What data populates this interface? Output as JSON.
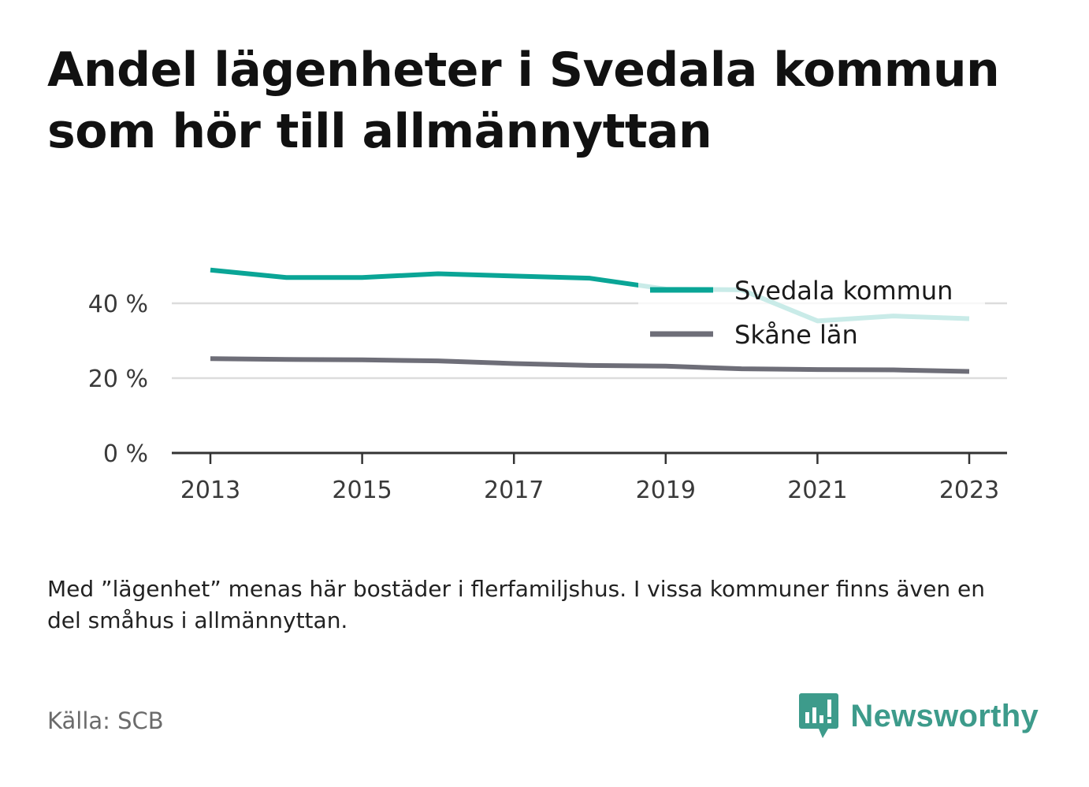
{
  "title": "Andel lägenheter i Svedala kommun som hör till allmännyttan",
  "note": "Med ”lägenhet” menas här bostäder i flerfamiljshus. I vissa kommuner finns även en del småhus i allmännyttan.",
  "source": "Källa: SCB",
  "brand": {
    "name": "Newsworthy",
    "color": "#3d9b8b"
  },
  "chart_data": {
    "type": "line",
    "x": [
      2013,
      2014,
      2015,
      2016,
      2017,
      2018,
      2019,
      2020,
      2021,
      2022,
      2023
    ],
    "x_ticks": [
      "2013",
      "2015",
      "2017",
      "2019",
      "2021",
      "2023"
    ],
    "y_ticks": [
      "0 %",
      "20 %",
      "40 %"
    ],
    "ylim": [
      0,
      50
    ],
    "grid": true,
    "legend_position": "top-right",
    "series": [
      {
        "name": "Svedala kommun",
        "color": "#0aa596",
        "values": [
          48.9,
          46.9,
          46.9,
          47.9,
          47.3,
          46.7,
          43.8,
          43.6,
          35.3,
          36.6,
          35.9
        ]
      },
      {
        "name": "Skåne län",
        "color": "#6e6e78",
        "values": [
          25.2,
          25.0,
          24.9,
          24.6,
          23.9,
          23.4,
          23.2,
          22.5,
          22.3,
          22.2,
          21.8
        ]
      }
    ]
  }
}
